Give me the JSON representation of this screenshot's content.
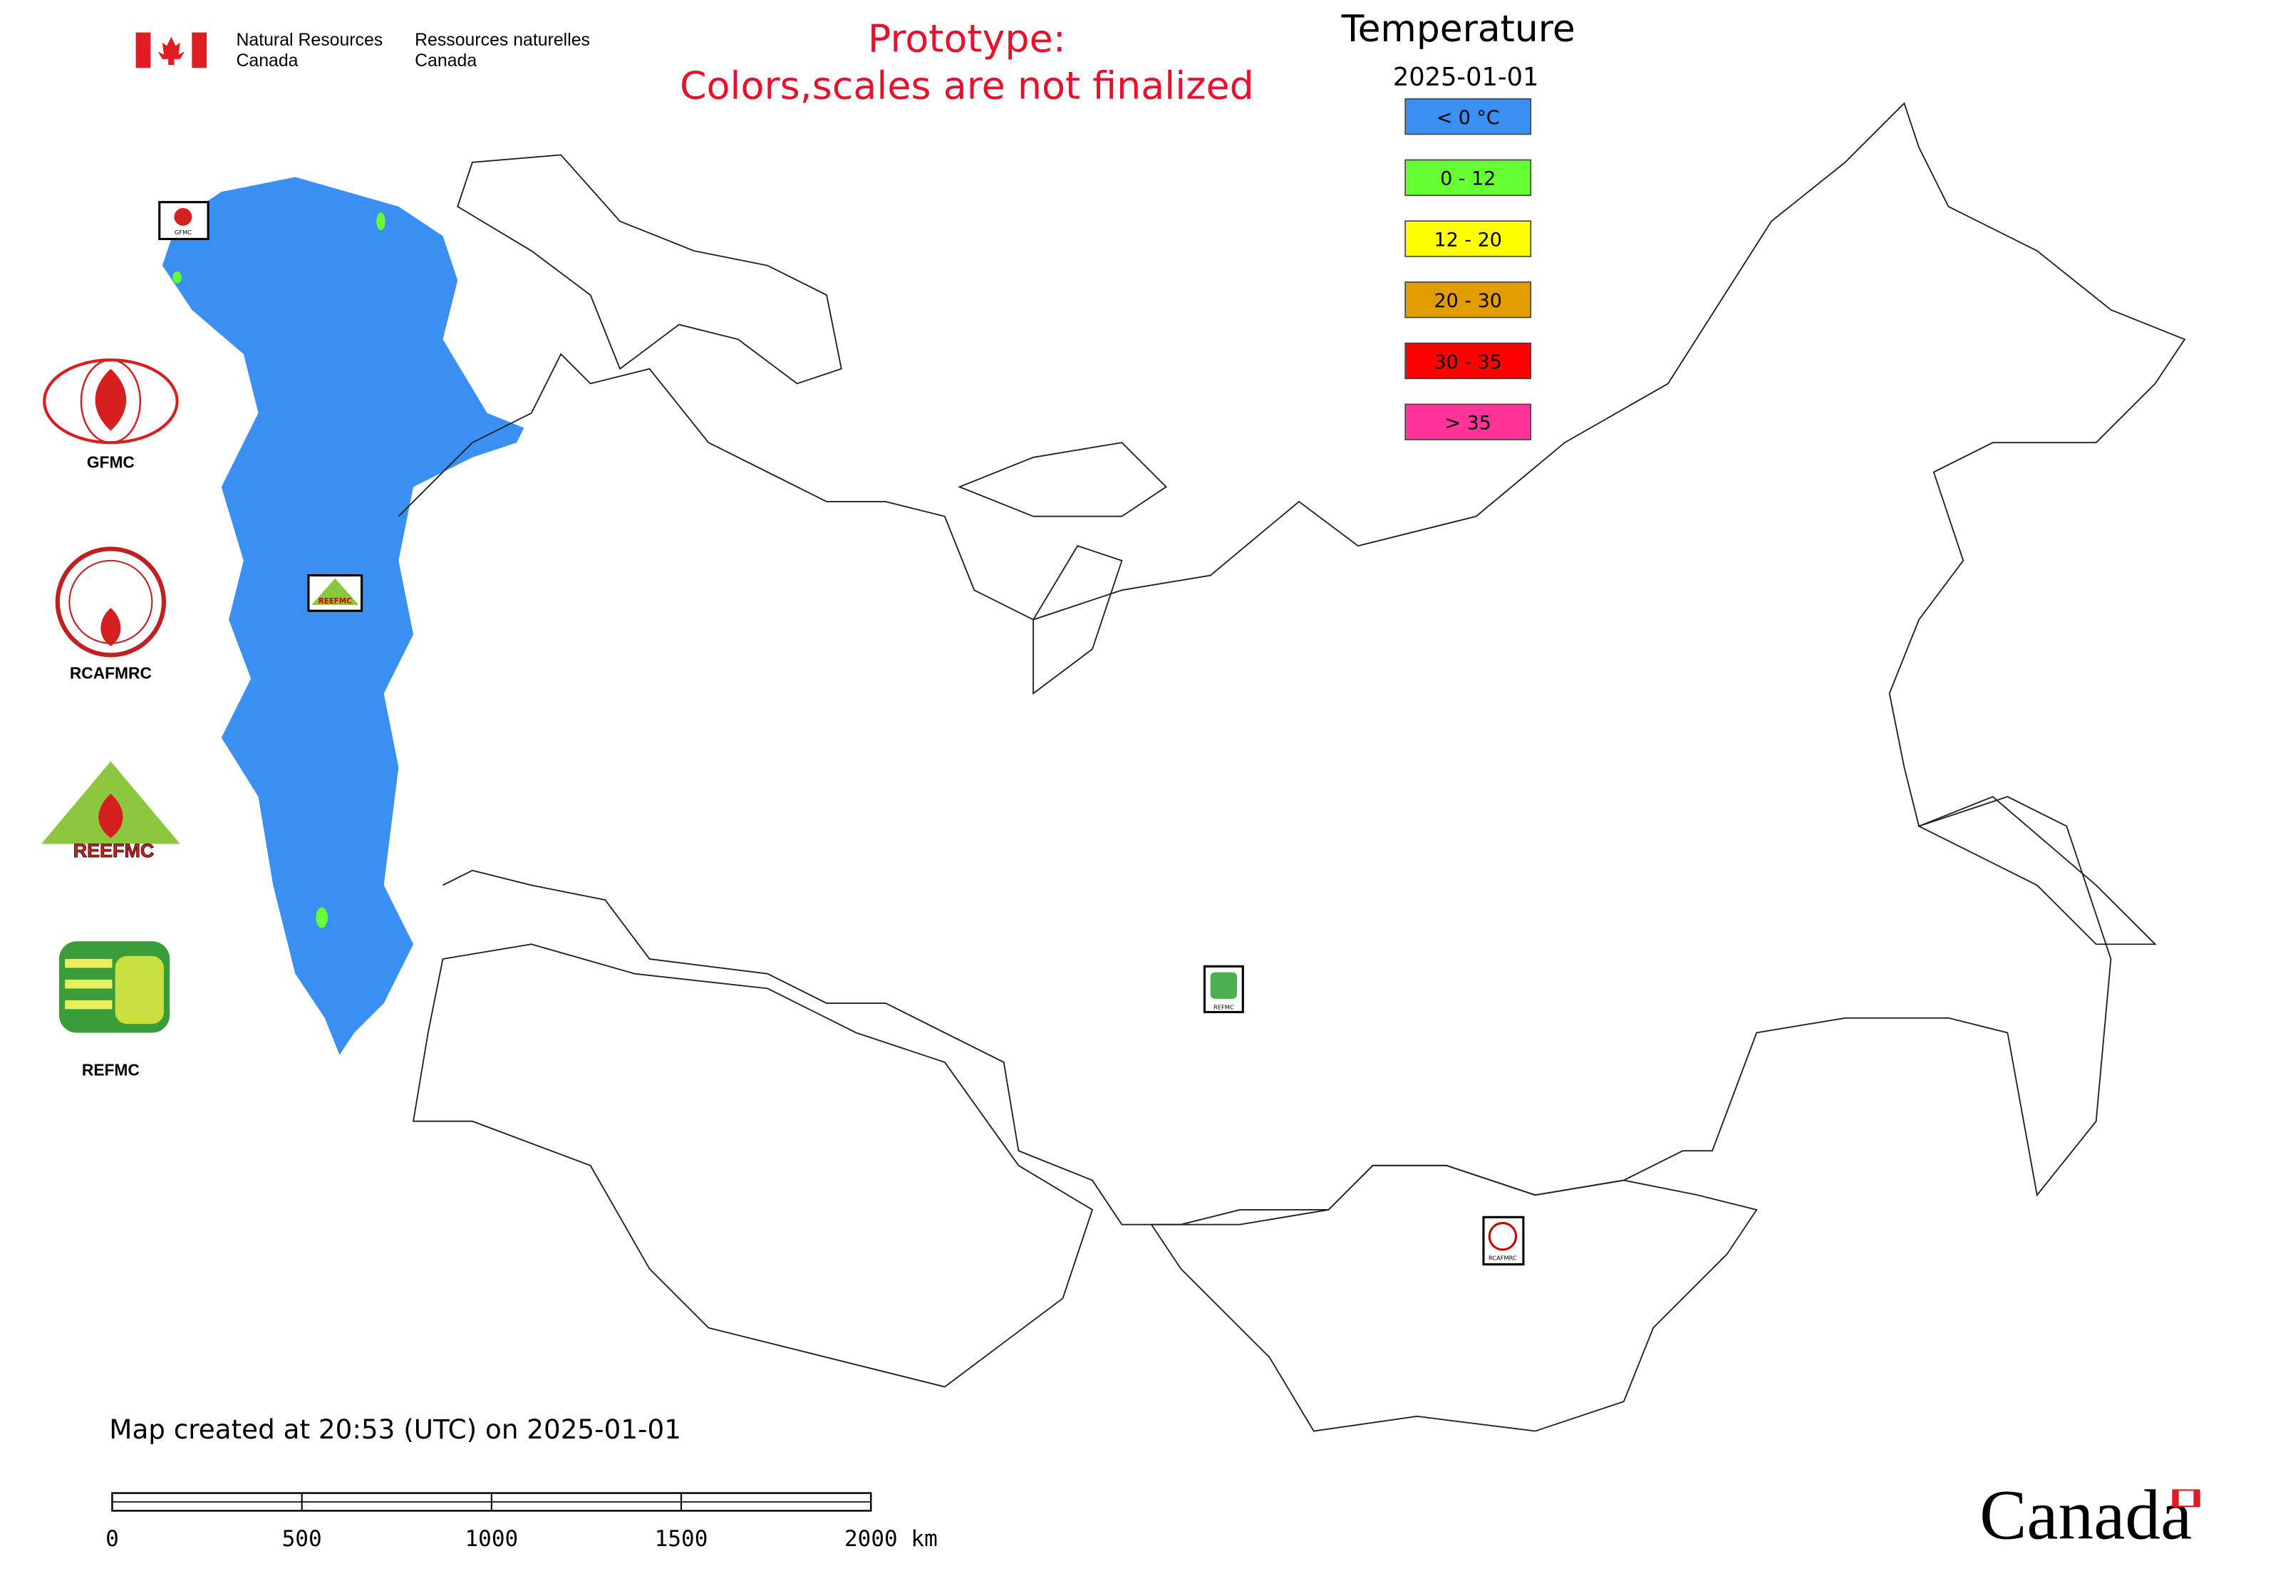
{
  "header": {
    "org_en": [
      "Natural Resources",
      "Canada"
    ],
    "org_fr": [
      "Ressources naturelles",
      "Canada"
    ]
  },
  "notice": [
    "Prototype:",
    "Colors,scales are not finalized"
  ],
  "legend": {
    "title": "Temperature",
    "date": "2025-01-01",
    "items": [
      {
        "label": "< 0 °C",
        "color": "#3a8ff2"
      },
      {
        "label": "0 - 12",
        "color": "#66ff33"
      },
      {
        "label": "12 - 20",
        "color": "#ffff00"
      },
      {
        "label": "20 - 30",
        "color": "#e09c00"
      },
      {
        "label": "30 - 35",
        "color": "#ff0000"
      },
      {
        "label": "> 35",
        "color": "#ff3399"
      }
    ]
  },
  "sidebar": {
    "gfmc": "GFMC",
    "rcafmrc": "RCAFMRC",
    "reefmc": "REEFMC",
    "refmc": "REFMC"
  },
  "footer": {
    "created": "Map created at 20:53 (UTC) on 2025-01-01",
    "scale": [
      "0",
      "500",
      "1000",
      "1500",
      "2000 km"
    ],
    "wordmark": "Canada"
  }
}
